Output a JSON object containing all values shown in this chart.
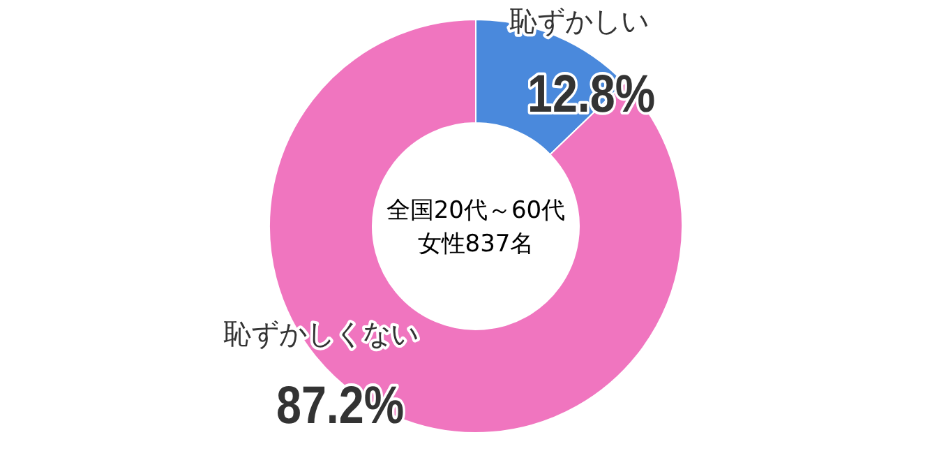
{
  "chart_data": {
    "type": "donut",
    "categories": [
      "恥ずかしい",
      "恥ずかしくない"
    ],
    "values": [
      12.8,
      87.2
    ],
    "colors": [
      "#4a89dc",
      "#f075bf"
    ],
    "value_labels": [
      "12.8%",
      "87.2%"
    ],
    "annotations": [
      "全国20代～60代",
      "女性837名"
    ]
  }
}
